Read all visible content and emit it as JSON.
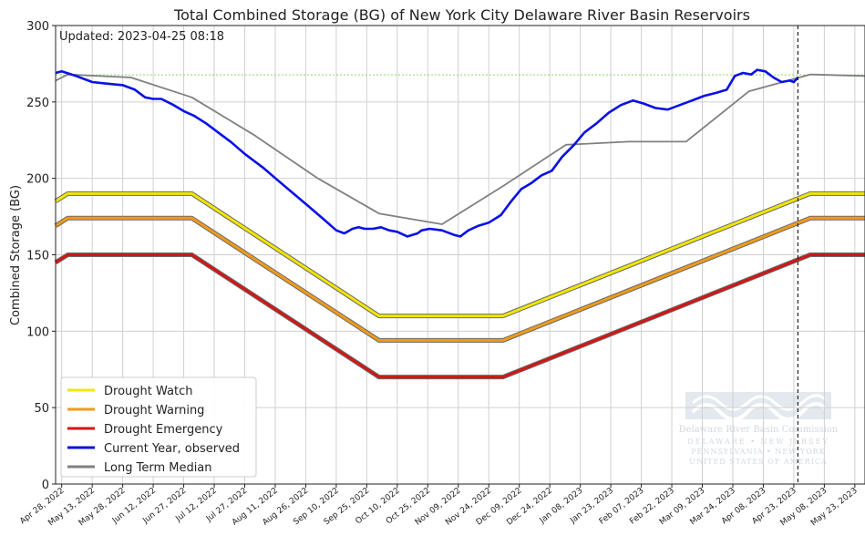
{
  "chart_data": {
    "type": "line",
    "title": "Total Combined Storage (BG) of New York City Delaware River Basin Reservoirs",
    "subtitle": "Updated: 2023-04-25 08:18",
    "xlabel": "",
    "ylabel": "Combined Storage (BG)",
    "xlim": [
      "2022-04-25",
      "2023-05-28"
    ],
    "ylim": [
      0,
      300
    ],
    "yticks": [
      0,
      50,
      100,
      150,
      200,
      250,
      300
    ],
    "grid": true,
    "legend_position": "lower-left",
    "current_date": "2023-04-25",
    "x_tick_labels": [
      "Apr 28, 2022",
      "May 13, 2022",
      "May 28, 2022",
      "Jun 12, 2022",
      "Jun 27, 2022",
      "Jul 12, 2022",
      "Jul 27, 2022",
      "Aug 11, 2022",
      "Aug 26, 2022",
      "Sep 10, 2022",
      "Sep 25, 2022",
      "Oct 10, 2022",
      "Oct 25, 2022",
      "Nov 09, 2022",
      "Nov 24, 2022",
      "Dec 09, 2022",
      "Dec 24, 2022",
      "Jan 08, 2023",
      "Jan 23, 2023",
      "Feb 07, 2023",
      "Feb 22, 2023",
      "Mar 09, 2023",
      "Mar 24, 2023",
      "Apr 08, 2023",
      "Apr 23, 2023",
      "May 08, 2023",
      "May 23, 2023"
    ],
    "x_tick_dates": [
      "2022-04-28",
      "2022-05-13",
      "2022-05-28",
      "2022-06-12",
      "2022-06-27",
      "2022-07-12",
      "2022-07-27",
      "2022-08-11",
      "2022-08-26",
      "2022-09-10",
      "2022-09-25",
      "2022-10-10",
      "2022-10-25",
      "2022-11-09",
      "2022-11-24",
      "2022-12-09",
      "2022-12-24",
      "2023-01-08",
      "2023-01-23",
      "2023-02-07",
      "2023-02-22",
      "2023-03-09",
      "2023-03-24",
      "2023-04-08",
      "2023-04-23",
      "2023-05-08",
      "2023-05-23"
    ],
    "reference_line": {
      "y": 267.7,
      "color": "#7fdc5f"
    },
    "series": [
      {
        "name": "Drought Watch",
        "color": "#f2e600",
        "x": [
          "2022-04-25",
          "2022-05-01",
          "2022-07-01",
          "2022-10-01",
          "2022-12-01",
          "2023-05-01",
          "2023-05-28"
        ],
        "y": [
          185,
          190,
          190,
          110,
          110,
          190,
          190
        ]
      },
      {
        "name": "Drought Warning",
        "color": "#f09a1a",
        "x": [
          "2022-04-25",
          "2022-05-01",
          "2022-07-01",
          "2022-10-01",
          "2022-12-01",
          "2023-05-01",
          "2023-05-28"
        ],
        "y": [
          169,
          174,
          174,
          94,
          94,
          174,
          174
        ]
      },
      {
        "name": "Drought Emergency",
        "color": "#d21616",
        "x": [
          "2022-04-25",
          "2022-05-01",
          "2022-07-01",
          "2022-10-01",
          "2022-12-01",
          "2023-05-01",
          "2023-05-28"
        ],
        "y": [
          145,
          150,
          150,
          70,
          70,
          150,
          150
        ]
      },
      {
        "name": "Current Year, observed",
        "color": "#0a10e6",
        "x": [
          "2022-04-25",
          "2022-04-28",
          "2022-05-05",
          "2022-05-13",
          "2022-05-20",
          "2022-05-28",
          "2022-06-03",
          "2022-06-08",
          "2022-06-12",
          "2022-06-16",
          "2022-06-22",
          "2022-06-27",
          "2022-07-02",
          "2022-07-08",
          "2022-07-14",
          "2022-07-20",
          "2022-07-27",
          "2022-08-05",
          "2022-08-12",
          "2022-08-20",
          "2022-08-28",
          "2022-09-04",
          "2022-09-10",
          "2022-09-14",
          "2022-09-18",
          "2022-09-21",
          "2022-09-24",
          "2022-09-28",
          "2022-10-02",
          "2022-10-06",
          "2022-10-10",
          "2022-10-15",
          "2022-10-20",
          "2022-10-22",
          "2022-10-26",
          "2022-11-01",
          "2022-11-07",
          "2022-11-10",
          "2022-11-14",
          "2022-11-19",
          "2022-11-24",
          "2022-11-30",
          "2022-12-05",
          "2022-12-10",
          "2022-12-15",
          "2022-12-20",
          "2022-12-25",
          "2022-12-30",
          "2023-01-05",
          "2023-01-10",
          "2023-01-16",
          "2023-01-22",
          "2023-01-28",
          "2023-02-03",
          "2023-02-08",
          "2023-02-14",
          "2023-02-20",
          "2023-02-26",
          "2023-03-04",
          "2023-03-10",
          "2023-03-16",
          "2023-03-21",
          "2023-03-25",
          "2023-03-29",
          "2023-04-02",
          "2023-04-05",
          "2023-04-09",
          "2023-04-13",
          "2023-04-17",
          "2023-04-21",
          "2023-04-23",
          "2023-04-25"
        ],
        "y": [
          269,
          270,
          267,
          263,
          262,
          261,
          258,
          253,
          252,
          252,
          248,
          244,
          241,
          236,
          230,
          224,
          216,
          207,
          199,
          190,
          181,
          173,
          166,
          164,
          167,
          168,
          167,
          167,
          168,
          166,
          165,
          162,
          164,
          166,
          167,
          166,
          163,
          162,
          166,
          169,
          171,
          176,
          185,
          193,
          197,
          202,
          205,
          214,
          222,
          230,
          236,
          243,
          248,
          251,
          249,
          246,
          245,
          248,
          251,
          254,
          256,
          258,
          267,
          269,
          268,
          271,
          270,
          266,
          263,
          264,
          263,
          266
        ]
      },
      {
        "name": "Long Term Median",
        "color": "#808080",
        "x": [
          "2022-04-25",
          "2022-05-01",
          "2022-06-01",
          "2022-07-01",
          "2022-08-01",
          "2022-09-01",
          "2022-10-01",
          "2022-11-01",
          "2022-12-01",
          "2023-01-01",
          "2023-02-01",
          "2023-03-01",
          "2023-04-01",
          "2023-05-01",
          "2023-05-28"
        ],
        "y": [
          264,
          268,
          266,
          253,
          228,
          200,
          177,
          170,
          195,
          222,
          224,
          224,
          257,
          268,
          267
        ]
      }
    ]
  },
  "watermark": {
    "org_name": "Delaware River Basin Commission",
    "states_line1": "DELAWARE • NEW JERSEY",
    "states_line2": "PENNSYLVANIA • NEW YORK",
    "states_line3": "UNITED STATES OF AMERICA"
  }
}
